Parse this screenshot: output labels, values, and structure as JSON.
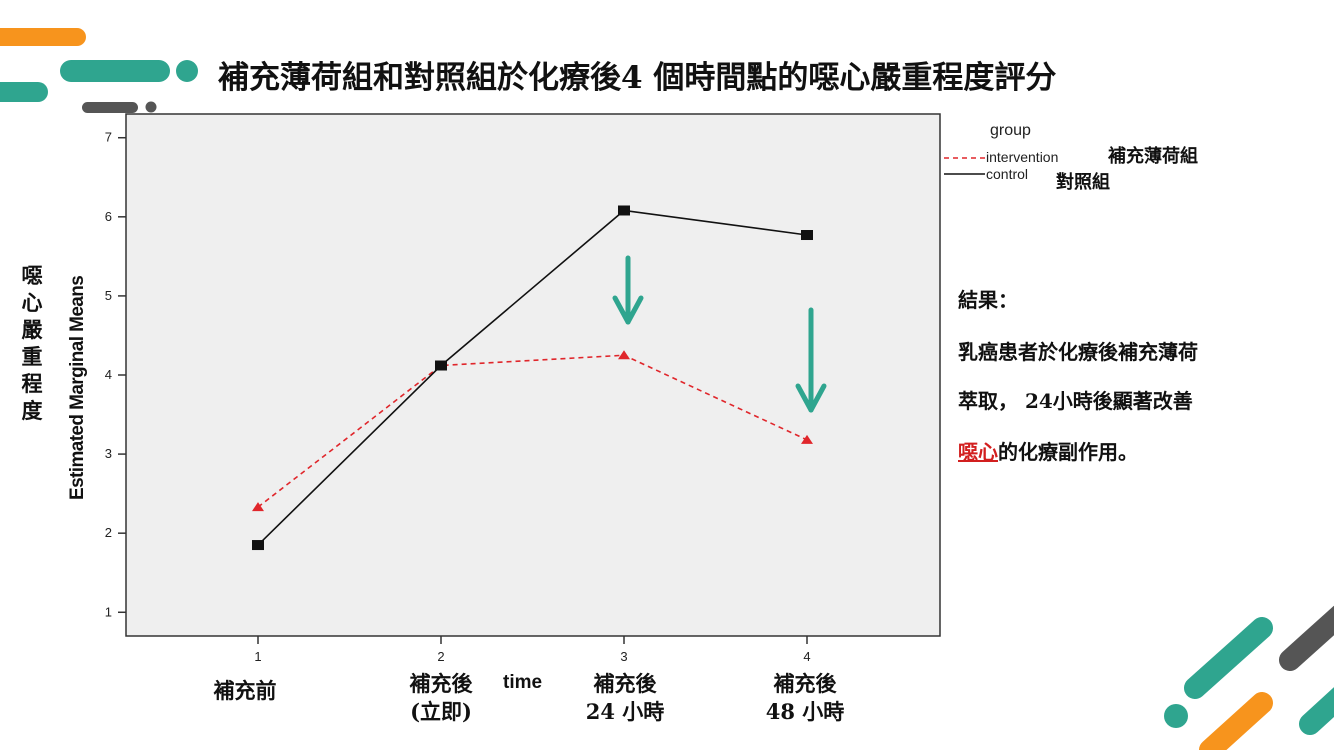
{
  "slide": {
    "title": "補充薄荷組和對照組於化療後4 個時間點的噁心嚴重程度評分"
  },
  "colors": {
    "orange": "#f7941d",
    "teal": "#2fa58f",
    "gray": "#555555",
    "intervention": "#e0262b",
    "control": "#111111",
    "arrow": "#2fa58f",
    "highlight": "#d21f1f"
  },
  "chart_data": {
    "type": "line",
    "x": [
      1,
      2,
      3,
      4
    ],
    "x_tick_labels": [
      "1",
      "2",
      "3",
      "4"
    ],
    "x_category_labels": [
      [
        "補充前"
      ],
      [
        "補充後",
        "(立即)"
      ],
      [
        "補充後",
        "24 小時"
      ],
      [
        "補充後",
        "48 小時"
      ]
    ],
    "xlabel": "time",
    "ylabel": "Estimated Marginal Means",
    "ylabel_cjk": [
      "噁",
      "心",
      "嚴",
      "重",
      "程",
      "度"
    ],
    "ylim": [
      0.7,
      7.3
    ],
    "y_ticks": [
      1,
      2,
      3,
      4,
      5,
      6,
      7
    ],
    "grid": false,
    "legend": {
      "title": "group",
      "placement": "top-right, outside plot"
    },
    "series": [
      {
        "name": "intervention",
        "name_cjk": "補充薄荷組",
        "style": "dashed",
        "marker": "triangle",
        "values": [
          2.33,
          4.12,
          4.25,
          3.18
        ]
      },
      {
        "name": "control",
        "name_cjk": "對照組",
        "style": "solid",
        "marker": "square",
        "values": [
          1.85,
          4.12,
          6.08,
          5.77
        ]
      }
    ],
    "annotations": [
      {
        "type": "arrow-down",
        "at_x": 3
      },
      {
        "type": "arrow-down",
        "at_x": 4
      }
    ]
  },
  "result": {
    "heading": "結果：",
    "line1": "乳癌患者於化療後補充薄荷",
    "line2": "萃取， 24小時後顯著改善",
    "line3_highlight": "噁心",
    "line3_rest": "的化療副作用。"
  }
}
